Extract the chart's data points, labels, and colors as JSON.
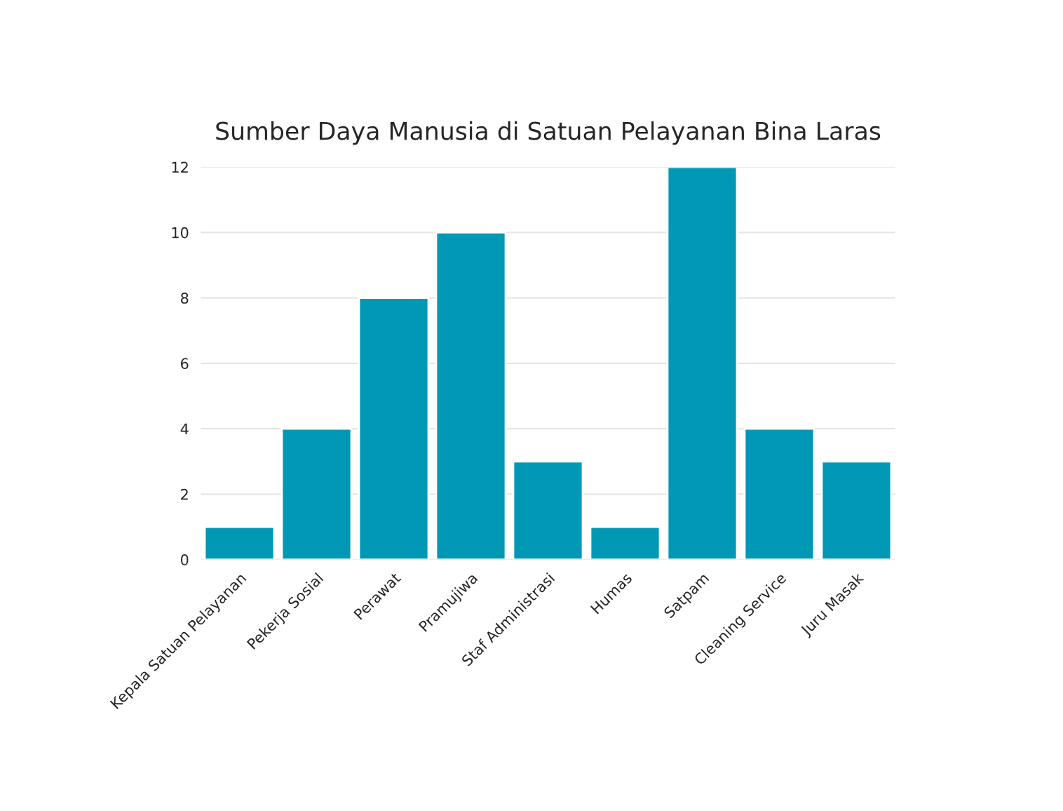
{
  "chart_data": {
    "type": "bar",
    "title": "Sumber Daya Manusia di Satuan Pelayanan Bina Laras",
    "categories": [
      "Kepala Satuan Pelayanan",
      "Pekerja Sosial",
      "Perawat",
      "Pramujiwa",
      "Staf Administrasi",
      "Humas",
      "Satpam",
      "Cleaning Service",
      "Juru Masak"
    ],
    "values": [
      1,
      4,
      8,
      10,
      3,
      1,
      12,
      4,
      3
    ],
    "color": "#0098b5",
    "ylim": [
      0,
      12
    ],
    "yticks": [
      0,
      2,
      4,
      6,
      8,
      10,
      12
    ],
    "grid": "y",
    "legend": false
  }
}
